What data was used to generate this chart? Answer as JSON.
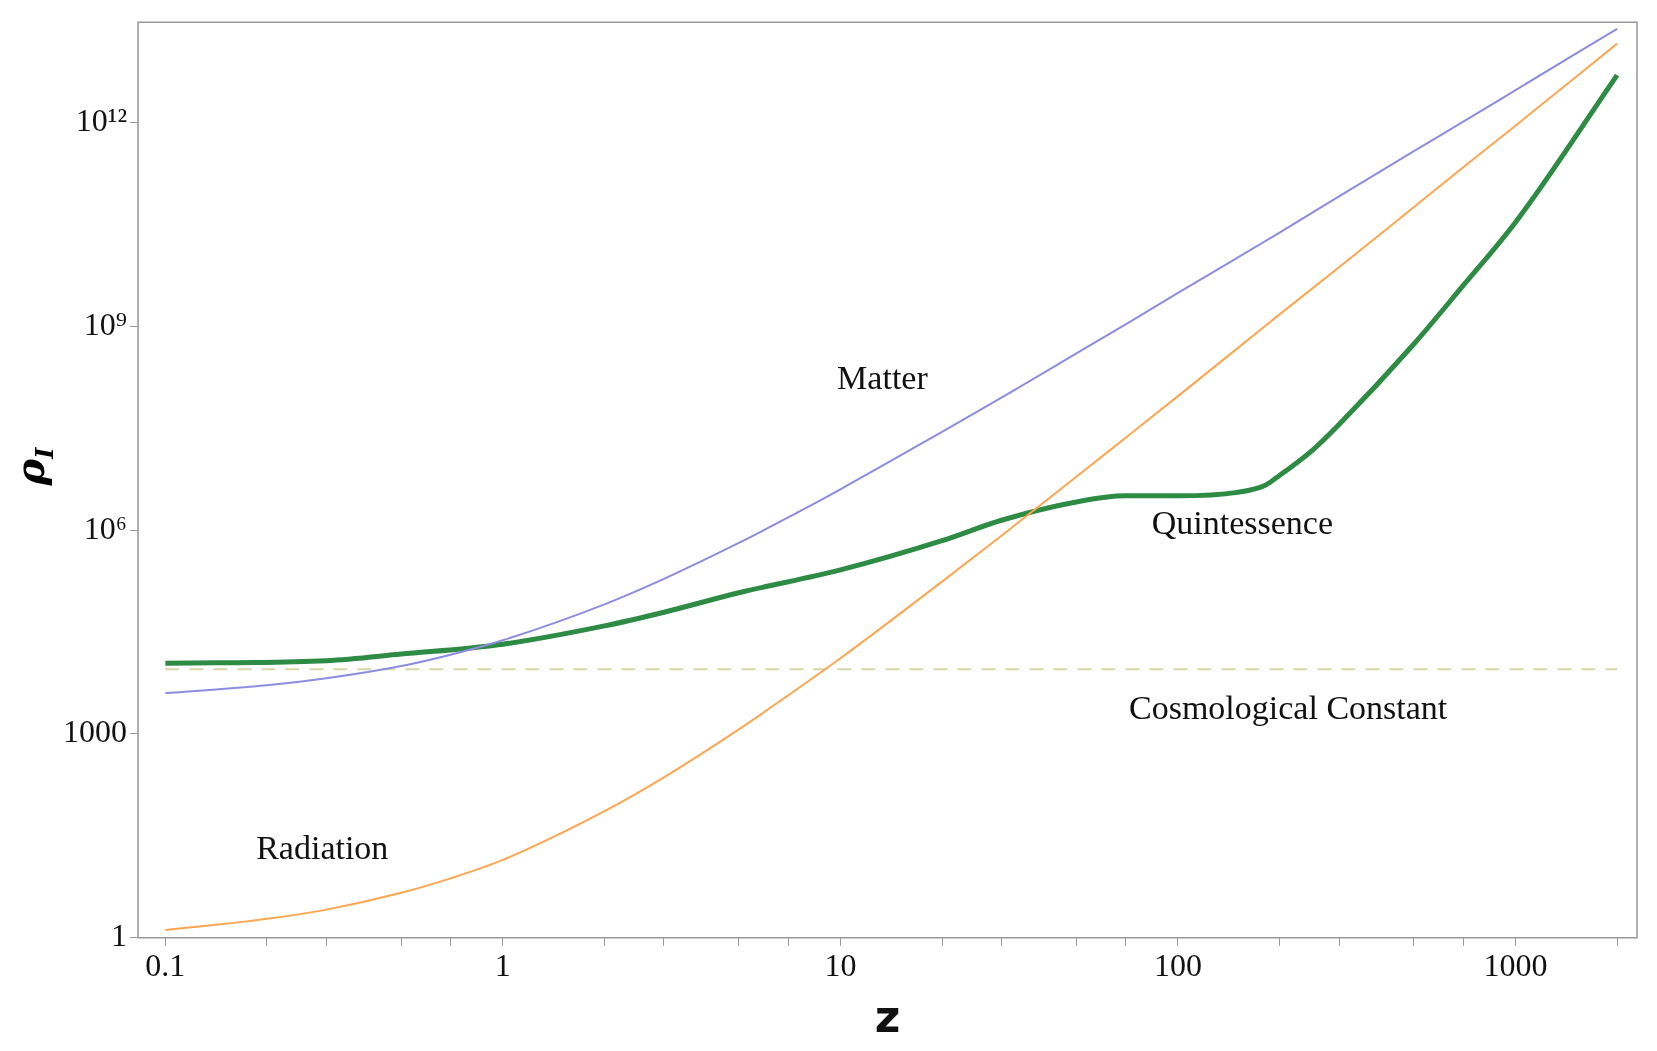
{
  "chart_data": {
    "type": "line",
    "xlabel": "z",
    "ylabel": "ρ$_{I}$",
    "log": "xy",
    "grid": false,
    "legend": false,
    "marker": "none",
    "x": [
      0.1,
      0.2,
      0.3,
      0.5,
      0.7,
      1,
      2,
      3,
      5,
      7,
      10,
      20,
      30,
      50,
      70,
      100,
      200,
      300,
      500,
      700,
      1000,
      2000
    ],
    "series": [
      {
        "name": "Matter",
        "color": "#8c8ce0",
        "values": [
          4000,
          5200,
          6600,
          10000,
          14700,
          24000,
          81000,
          192000,
          648000,
          1540000,
          4000000,
          28000000,
          89000000,
          400000000,
          1070000000,
          3100000000,
          24000000000,
          82000000000,
          380000000000,
          1030000000000,
          3000000000000,
          24000000000000
        ]
      },
      {
        "name": "Radiation",
        "color": "#ffa550",
        "values": [
          1.3,
          1.9,
          2.6,
          4.6,
          7.5,
          14,
          73,
          230,
          1170,
          3700,
          13000,
          175000,
          830000,
          6100000,
          23000000,
          94000000,
          1500000000,
          7400000000,
          57000000000,
          220000000000,
          900000000000,
          14500000000000
        ]
      },
      {
        "name": "Cosmological Constant",
        "color": "#d6d6a8",
        "line_style": "dashed",
        "x": [
          0.1,
          2000
        ],
        "values": [
          9000,
          9000
        ]
      },
      {
        "name": "Quintessence",
        "color": "#2e8b44",
        "x": [
          0.1,
          0.3,
          0.5,
          1,
          2,
          3,
          5,
          10,
          20,
          30,
          50,
          70,
          100,
          150,
          180,
          200,
          250,
          300,
          500,
          700,
          1000,
          2000
        ],
        "values": [
          11000,
          12000,
          15000,
          21000,
          39000,
          62000,
          120000,
          260000,
          700000,
          1400000,
          2600000,
          3200000,
          3200000,
          3600000,
          4500000,
          6400000,
          15000000,
          36000000,
          550000000,
          4000000000,
          34000000000,
          5000000000000
        ]
      }
    ],
    "xlim": [
      0.083,
      2290
    ],
    "ylim": [
      1,
      30000000000000
    ],
    "xticks": [
      0.1,
      {
        "value": 0.2,
        "label": null
      },
      {
        "value": 0.3,
        "label": null
      },
      {
        "value": 0.5,
        "label": null
      },
      {
        "value": 0.7,
        "label": null
      },
      1,
      {
        "value": 2,
        "label": null
      },
      {
        "value": 3,
        "label": null
      },
      {
        "value": 5,
        "label": null
      },
      {
        "value": 7,
        "label": null
      },
      10,
      {
        "value": 20,
        "label": null
      },
      {
        "value": 30,
        "label": null
      },
      {
        "value": 50,
        "label": null
      },
      {
        "value": 70,
        "label": null
      },
      100,
      {
        "value": 200,
        "label": null
      },
      {
        "value": 300,
        "label": null
      },
      {
        "value": 500,
        "label": null
      },
      {
        "value": 700,
        "label": null
      },
      1000,
      {
        "value": 2000,
        "label": null
      }
    ],
    "yticks": [
      1,
      1000,
      {
        "value": 1000000,
        "label": "10⁶"
      },
      {
        "value": 1000000000,
        "label": "10⁹"
      },
      {
        "value": 1000000000000,
        "label": "10¹²"
      }
    ]
  }
}
